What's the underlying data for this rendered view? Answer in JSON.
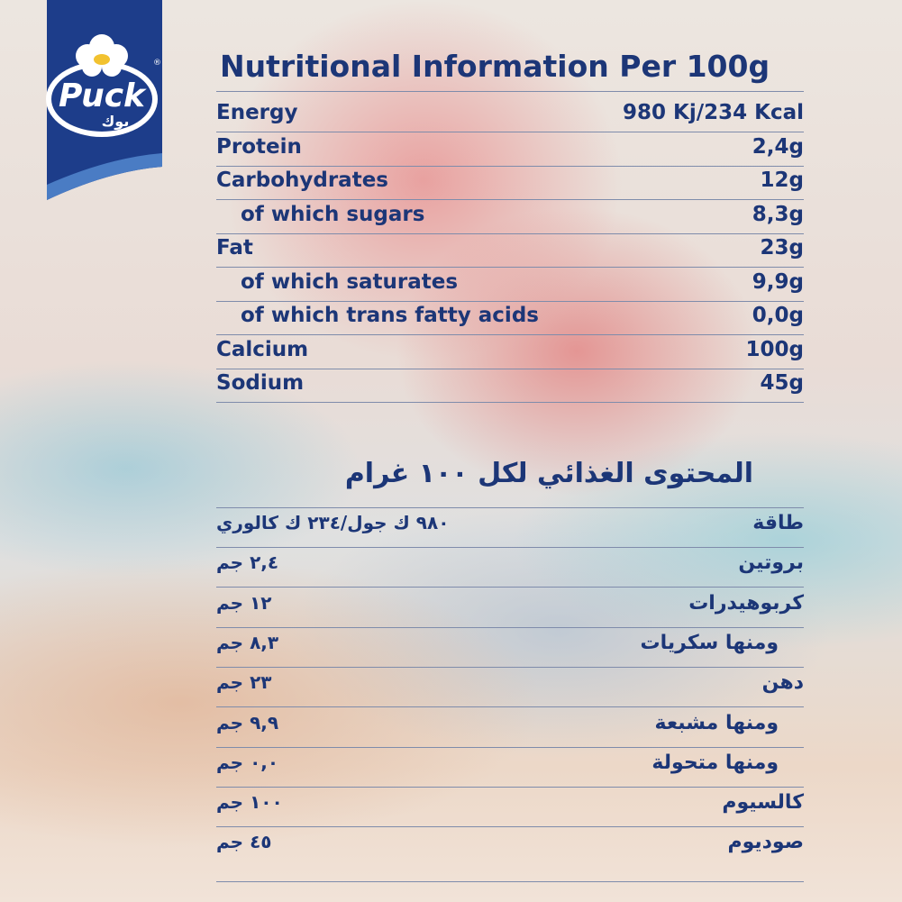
{
  "logo": {
    "brand": "Puck",
    "arabic": "بوك",
    "mark": "®"
  },
  "english": {
    "title": "Nutritional Information Per 100g",
    "rows": [
      {
        "label": "Energy",
        "value": "980 Kj/234 Kcal",
        "indent": 0
      },
      {
        "label": "Protein",
        "value": "2,4g",
        "indent": 0
      },
      {
        "label": "Carbohydrates",
        "value": "12g",
        "indent": 0
      },
      {
        "label": "of which sugars",
        "value": "8,3g",
        "indent": 1
      },
      {
        "label": "Fat",
        "value": "23g",
        "indent": 0
      },
      {
        "label": "of which saturates",
        "value": "9,9g",
        "indent": 1
      },
      {
        "label": "of which trans fatty acids",
        "value": "0,0g",
        "indent": 1
      },
      {
        "label": "Calcium",
        "value": "100g",
        "indent": 0
      },
      {
        "label": "Sodium",
        "value": "45g",
        "indent": 0
      }
    ]
  },
  "arabic": {
    "title": "المحتوى الغذائي لكل ١٠٠ غرام",
    "rows": [
      {
        "label": "طاقة",
        "value": "٩٨٠ ك جول/٢٣٤ ك كالوري",
        "indent": 0
      },
      {
        "label": "بروتين",
        "value": "٢,٤ جم",
        "indent": 0
      },
      {
        "label": "كربوهيدرات",
        "value": "١٢ جم",
        "indent": 0
      },
      {
        "label": "ومنها سكريات",
        "value": "٨,٣ جم",
        "indent": 1
      },
      {
        "label": "دهن",
        "value": "٢٣ جم",
        "indent": 0
      },
      {
        "label": "ومنها مشبعة",
        "value": "٩,٩ جم",
        "indent": 1
      },
      {
        "label": "ومنها متحولة",
        "value": "٠,٠ جم",
        "indent": 1
      },
      {
        "label": "كالسيوم",
        "value": "١٠٠ جم",
        "indent": 0
      },
      {
        "label": "صوديوم",
        "value": "٤٥ جم",
        "indent": 0
      }
    ]
  }
}
